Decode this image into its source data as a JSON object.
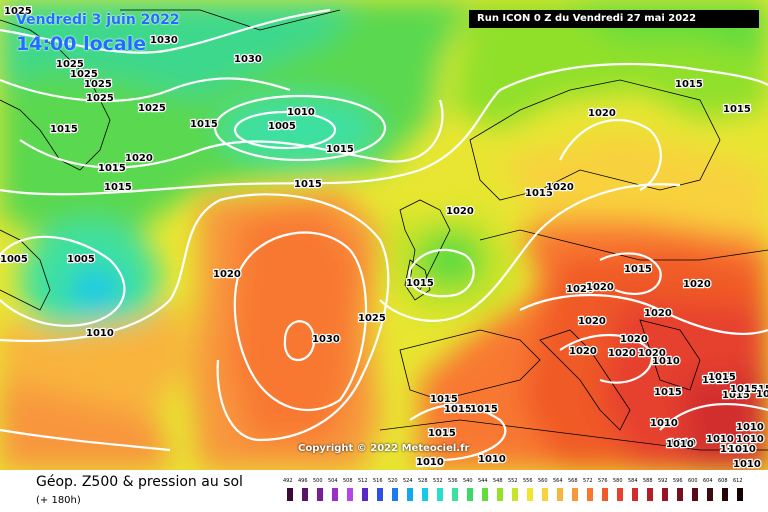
{
  "header": {
    "valid_date": "Vendredi 3 juin 2022",
    "local_time": "14:00 locale",
    "run_info": "Run ICON 0 Z du Vendredi 27 mai 2022"
  },
  "footer": {
    "title": "Géop. Z500 & pression au sol",
    "lead_time": "(+ 180h)",
    "copyright": "Copyright © 2022 Meteociel.fr"
  },
  "legend": {
    "ticks": [
      "492",
      "496",
      "500",
      "504",
      "508",
      "512",
      "516",
      "520",
      "524",
      "528",
      "532",
      "536",
      "540",
      "544",
      "548",
      "552",
      "556",
      "560",
      "564",
      "568",
      "572",
      "576",
      "580",
      "584",
      "588",
      "592",
      "596",
      "600",
      "604",
      "608",
      "612"
    ],
    "colors": [
      "#3a0a3a",
      "#5a1466",
      "#7a1e96",
      "#9b2ec8",
      "#b548e0",
      "#5a28c8",
      "#2c50e6",
      "#1a7cf0",
      "#14a8f0",
      "#18c8e8",
      "#28dcd0",
      "#3ce0a0",
      "#3cd86c",
      "#64dc3c",
      "#96e028",
      "#c8e428",
      "#f0e632",
      "#f8d23c",
      "#f8b43c",
      "#f8963c",
      "#f87832",
      "#f05a28",
      "#e6412d",
      "#d22d2d",
      "#b41e28",
      "#961423",
      "#780f1e",
      "#5a0a14",
      "#3c0a0f",
      "#280505",
      "#140000"
    ]
  },
  "colors": {
    "isobar": "#ffffff",
    "z500_low": "#3cd86c",
    "z500_high": "#f05a28"
  },
  "isobar_labels": [
    "1025",
    "1030",
    "1030",
    "1025",
    "1025",
    "1025",
    "1025",
    "1025",
    "1015",
    "1015",
    "1010",
    "1005",
    "1015",
    "1015",
    "1020",
    "1015",
    "1015",
    "1015",
    "1020",
    "1005",
    "1005",
    "1020",
    "1010",
    "1030",
    "1025",
    "1015",
    "1020",
    "1015",
    "1015",
    "1020",
    "1015",
    "1020",
    "1020",
    "1020",
    "1020",
    "1020",
    "1020",
    "1020",
    "1015",
    "1015",
    "1015",
    "1015",
    "1015",
    "1015",
    "1015",
    "1015",
    "1015",
    "1015",
    "1010",
    "1010",
    "1010",
    "1010",
    "1010",
    "1010",
    "1010",
    "1010",
    "1010",
    "1020",
    "1020",
    "1010",
    "1015",
    "1010",
    "1010",
    "1010"
  ]
}
